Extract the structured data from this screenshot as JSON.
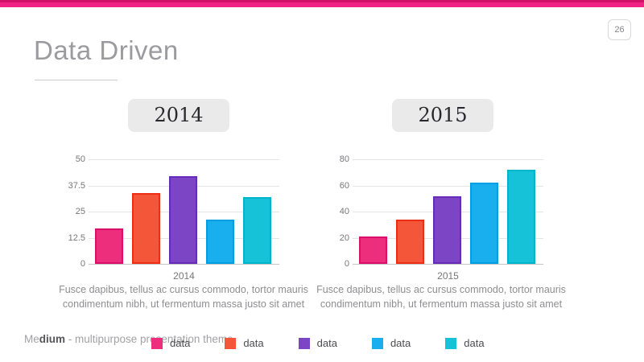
{
  "page_number": "26",
  "title": "Data Driven",
  "footer": {
    "brand_light": "Me",
    "brand_bold": "dium",
    "tagline": " - multipurpose presentation theme"
  },
  "palette": {
    "accent_bar_top": "#CE1268",
    "accent_bar_bottom": "#F02385",
    "grid": "#E4E4E4",
    "axis": "#C6C6C6",
    "bars": [
      {
        "name": "pink",
        "fill": "#ED2E7C",
        "border": "#DC0E6B"
      },
      {
        "name": "orange",
        "fill": "#F4563A",
        "border": "#ED2E15"
      },
      {
        "name": "purple",
        "fill": "#7B45C6",
        "border": "#682BB8"
      },
      {
        "name": "blue",
        "fill": "#19AEEE",
        "border": "#009FE3"
      },
      {
        "name": "cyan",
        "fill": "#16C2D8",
        "border": "#00B4CC"
      }
    ]
  },
  "legend": {
    "items": [
      {
        "label": "data"
      },
      {
        "label": "data"
      },
      {
        "label": "data"
      },
      {
        "label": "data"
      },
      {
        "label": "data"
      }
    ]
  },
  "chart_data": [
    {
      "type": "bar",
      "title": "2014",
      "x_label": "2014",
      "categories": [
        "data",
        "data",
        "data",
        "data",
        "data"
      ],
      "values": [
        17,
        34,
        42,
        21,
        32
      ],
      "y_ticks": [
        0,
        12.5,
        25,
        37.5,
        50
      ],
      "ylim": [
        0,
        50
      ],
      "grid": true,
      "legend_position": "bottom",
      "caption": "Fusce dapibus, tellus ac cursus commodo, tortor mauris condimentum nibh, ut fermentum massa justo sit amet"
    },
    {
      "type": "bar",
      "title": "2015",
      "x_label": "2015",
      "categories": [
        "data",
        "data",
        "data",
        "data",
        "data"
      ],
      "values": [
        21,
        34,
        52,
        62,
        72
      ],
      "y_ticks": [
        0,
        20,
        40,
        60,
        80
      ],
      "ylim": [
        0,
        80
      ],
      "grid": true,
      "legend_position": "bottom",
      "caption": "Fusce dapibus, tellus ac cursus commodo, tortor mauris condimentum nibh, ut fermentum massa justo sit amet"
    }
  ]
}
